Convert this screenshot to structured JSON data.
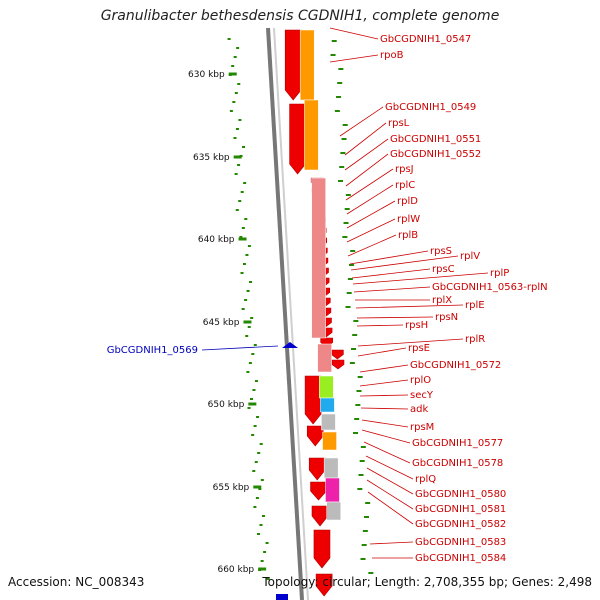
{
  "title": "Granulibacter bethesdensis CGDNIH1, complete genome",
  "footer": {
    "accession": "Accession: NC_008343",
    "summary": "Topology: circular; Length: 2,708,355 bp; Genes: 2,498"
  },
  "ticks": [
    "630 kbp",
    "635 kbp",
    "640 kbp",
    "645 kbp",
    "650 kbp",
    "655 kbp",
    "660 kbp"
  ],
  "labels_right": [
    "GbCGDNIH1_0547",
    "rpoB",
    "GbCGDNIH1_0549",
    "rpsL",
    "GbCGDNIH1_0551",
    "GbCGDNIH1_0552",
    "rpsJ",
    "rplC",
    "rplD",
    "rplW",
    "rplB",
    "rpsS",
    "rplV",
    "rpsC",
    "rplP",
    "GbCGDNIH1_0563-rplN",
    "rplX",
    "rplE",
    "rpsN",
    "rpsH",
    "rplR",
    "rpsE",
    "GbCGDNIH1_0572",
    "rplO",
    "secY",
    "adk",
    "rpsM",
    "GbCGDNIH1_0577",
    "GbCGDNIH1_0578",
    "rplQ",
    "GbCGDNIH1_0580",
    "GbCGDNIH1_0581",
    "GbCGDNIH1_0582",
    "GbCGDNIH1_0583",
    "GbCGDNIH1_0584"
  ],
  "labels_left": [
    "GbCGDNIH1_0569"
  ],
  "colors": {
    "cds": "#ee0000",
    "orange": "#ff9900",
    "pink": "#ee8888",
    "green": "#99ee22",
    "cyan": "#22aaee",
    "magenta": "#ee22aa",
    "grey": "#bbbbbb",
    "blue": "#0000cc",
    "tick_green": "#228800",
    "label_red": "#cc0000",
    "label_blue": "#0000bb"
  }
}
